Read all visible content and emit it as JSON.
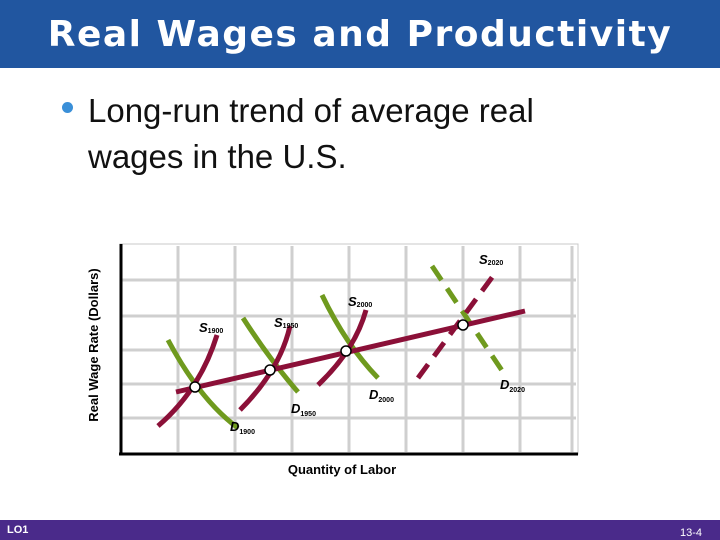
{
  "title": "Real Wages and Productivity",
  "bullet": "Long-run trend of average real wages in the U.S.",
  "chart": {
    "ylabel": "Real Wage Rate (Dollars)",
    "xlabel": "Quantity of Labor",
    "labels": {
      "s1900": {
        "main": "S",
        "sub": "1900"
      },
      "s1950": {
        "main": "S",
        "sub": "1950"
      },
      "s2000": {
        "main": "S",
        "sub": "2000"
      },
      "s2020": {
        "main": "S",
        "sub": "2020"
      },
      "d1900": {
        "main": "D",
        "sub": "1900"
      },
      "d1950": {
        "main": "D",
        "sub": "1950"
      },
      "d2000": {
        "main": "D",
        "sub": "2000"
      },
      "d2020": {
        "main": "D",
        "sub": "2020"
      }
    },
    "colors": {
      "supply": "#8b1038",
      "demand": "#6f9a1e",
      "trend": "#8b1038"
    }
  },
  "footer": {
    "left": "LO1",
    "right": "13-4"
  }
}
